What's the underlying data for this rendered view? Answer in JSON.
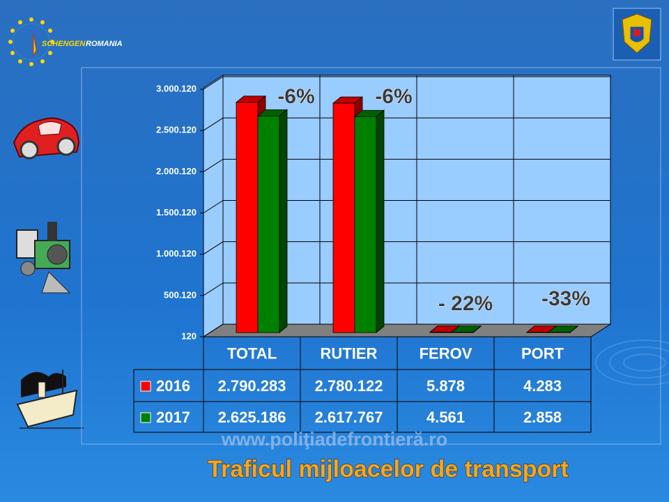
{
  "logo": {
    "first": "SCHENGEN",
    "second": "ROMANIA"
  },
  "watermark": "www.poliţiadefrontieră.ro",
  "chart_data": {
    "type": "bar3d",
    "title": "Traficul mijloacelor de transport",
    "categories": [
      "TOTAL",
      "RUTIER",
      "FEROV",
      "PORT"
    ],
    "series": [
      {
        "name": "2016",
        "color": "#ff0000",
        "values": [
          2790283,
          2780122,
          5878,
          4283
        ],
        "value_labels": [
          "2.790.283",
          "2.780.122",
          "5.878",
          "4.283"
        ]
      },
      {
        "name": "2017",
        "color": "#008000",
        "values": [
          2625186,
          2617767,
          4561,
          2858
        ],
        "value_labels": [
          "2.625.186",
          "2.617.767",
          "4.561",
          "2.858"
        ]
      }
    ],
    "annotations": [
      "-6%",
      "-6%",
      "- 22%",
      "-33%"
    ],
    "ylim": [
      120,
      3000120
    ],
    "yticks": [
      120,
      {
        "value": 500120,
        "label": "500.120"
      },
      {
        "value": 1000120,
        "label": "1.000.120"
      },
      {
        "value": 1500120,
        "label": "1.500.120"
      },
      {
        "value": 2000120,
        "label": "2.000.120"
      },
      {
        "value": 2500120,
        "label": "2.500.120"
      },
      {
        "value": 3000120,
        "label": "3.000.120"
      }
    ],
    "grid": true,
    "wall_color": "#99ccff",
    "floor_color": "#808080"
  }
}
